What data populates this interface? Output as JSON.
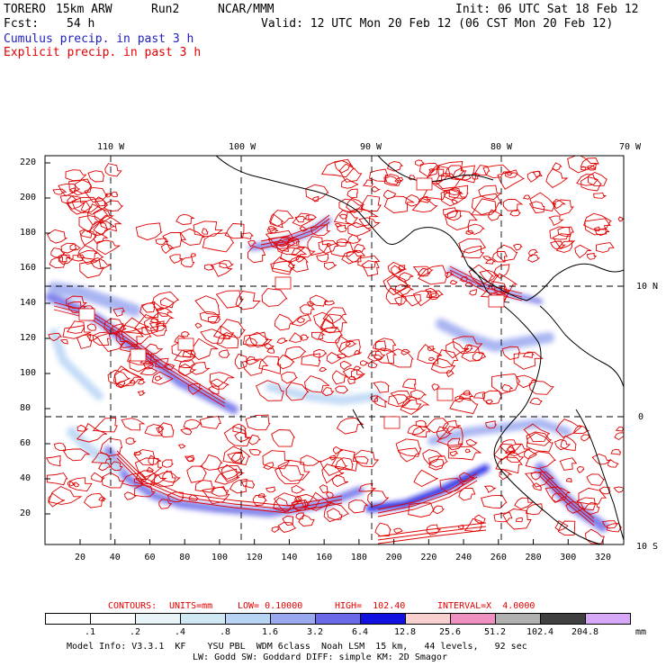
{
  "header": {
    "model": "TORERO",
    "resolution": "15km ARW",
    "run": "Run2",
    "org": "NCAR/MMM",
    "init": "Init: 06 UTC Sat 18 Feb 12",
    "fcst_label": "Fcst:",
    "fcst_value": "54 h",
    "valid": "Valid: 12 UTC Mon 20 Feb 12 (06 CST Mon 20 Feb 12)"
  },
  "legend": {
    "cumulus": "Cumulus precip. in past 3 h",
    "explicit": "Explicit precip. in past 3 h",
    "cumulus_color": "#2020c0",
    "explicit_color": "#e00000"
  },
  "map": {
    "top_lon_labels": [
      "110 W",
      "100 W",
      "90 W",
      "80 W",
      "70 W"
    ],
    "right_lat_labels": [
      "10 N",
      "0",
      "10 S"
    ],
    "y_ticks": [
      "220",
      "200",
      "180",
      "160",
      "140",
      "120",
      "100",
      "80",
      "60",
      "40",
      "20"
    ],
    "x_ticks": [
      "20",
      "40",
      "60",
      "80",
      "100",
      "120",
      "140",
      "160",
      "180",
      "200",
      "220",
      "240",
      "260",
      "280",
      "300",
      "320"
    ],
    "contour_color": "#e00000",
    "coast_color": "#000000"
  },
  "contours_line": {
    "label": "CONTOURS:",
    "units": "UNITS=mm",
    "low": "LOW= 0.10000",
    "high": "HIGH=  102.40",
    "interval": "INTERVAL=X  4.0000"
  },
  "colorbar": {
    "labels": [
      ".1",
      ".2",
      ".4",
      ".8",
      "1.6",
      "3.2",
      "6.4",
      "12.8",
      "25.6",
      "51.2",
      "102.4",
      "204.8"
    ],
    "unit": "mm",
    "colors": [
      "#ffffff",
      "#ffffff",
      "#e8f4f8",
      "#d0e8f4",
      "#b8d4f4",
      "#9aa8f0",
      "#6a6ae8",
      "#1010e0",
      "#f8d0d0",
      "#f090c0",
      "#b0b0b0",
      "#404040",
      "#d8a8f8"
    ]
  },
  "footer": {
    "line1": "Model Info: V3.3.1  KF    YSU PBL  WDM 6class  Noah LSM  15 km,   44 levels,   92 sec",
    "line2": "LW: Godd SW: Goddard DIFF: simple KM: 2D Smagor"
  }
}
